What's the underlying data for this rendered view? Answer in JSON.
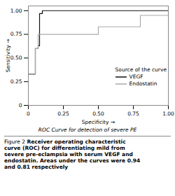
{
  "chart_data": {
    "type": "step",
    "xlabel": "Specificity",
    "ylabel": "Sensitivity",
    "annotations": [
      "ROC Curve for detection of severe PE"
    ],
    "caption_label": "Figure 2",
    "caption": "Receiver operating characteristic\ncurve (ROC) for differentiating mild from\nsevere pre-eclampsia with serum VEGF and\nendostatin. Areas under the curves were 0.94\nand 0.81 respectively",
    "legend_title": "Source of the curve",
    "legend": "lower right",
    "series": [
      {
        "name": "VEGF",
        "color": "#111111",
        "x": [
          0.0,
          0.05,
          0.07,
          0.08,
          0.1,
          1.0
        ],
        "values": [
          0.33,
          0.6,
          0.63,
          0.97,
          1.0,
          1.0
        ]
      },
      {
        "name": "Endostatin",
        "color": "#aaaaaa",
        "x": [
          0.0,
          0.05,
          0.07,
          0.25,
          0.5,
          0.55,
          0.75,
          0.8,
          1.0
        ],
        "values": [
          0.33,
          0.6,
          0.75,
          0.75,
          0.83,
          0.83,
          0.83,
          0.95,
          1.0
        ]
      }
    ],
    "xlim": [
      0,
      1.0
    ],
    "ylim": [
      0,
      1.05
    ],
    "xticks": [
      0,
      0.25,
      {
        "value": 0.5,
        "label": "0.50"
      },
      0.75,
      {
        "value": 1.0,
        "label": "1.00"
      }
    ],
    "yticks": [
      0,
      0.25,
      {
        "value": 0.5,
        "label": "0.50"
      },
      0.75,
      {
        "value": 1.0,
        "label": "1.00"
      }
    ]
  }
}
